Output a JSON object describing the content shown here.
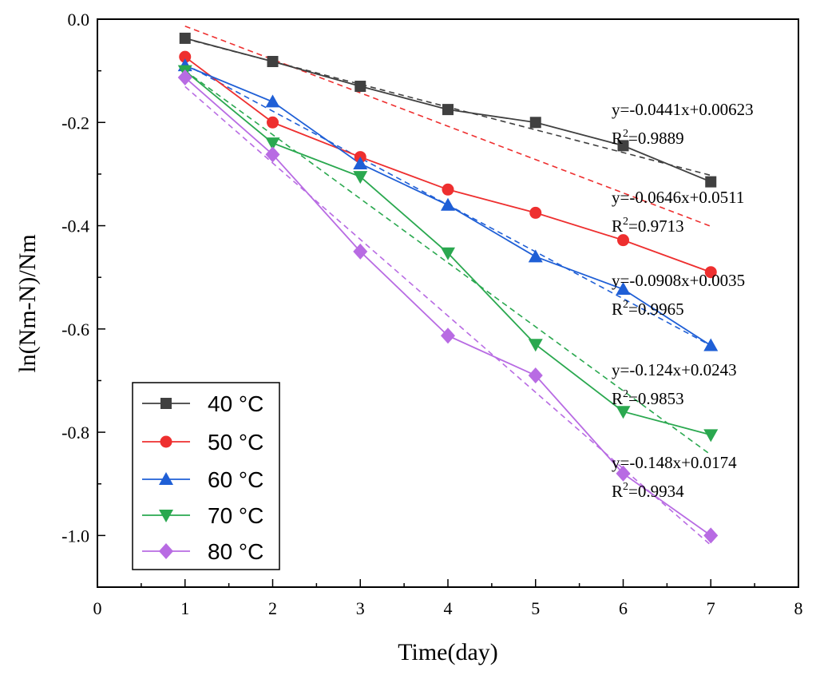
{
  "chart_data": {
    "type": "line",
    "xlabel": "Time(day)",
    "ylabel": "ln(Nm-N)/Nm",
    "xlim": [
      0,
      8
    ],
    "ylim": [
      -1.1,
      0.0
    ],
    "xticks": [
      0,
      1,
      2,
      3,
      4,
      5,
      6,
      7,
      8
    ],
    "xtick_labels": [
      "0",
      "1",
      "2",
      "3",
      "4",
      "5",
      "6",
      "7",
      "8"
    ],
    "yticks": [
      0.0,
      -0.2,
      -0.4,
      -0.6,
      -0.8,
      -1.0
    ],
    "ytick_labels": [
      "0.0",
      "-0.2",
      "-0.4",
      "-0.6",
      "-0.8",
      "-1.0"
    ],
    "grid": false,
    "legend_position": "bottom-left",
    "x": [
      1,
      2,
      3,
      4,
      5,
      6,
      7
    ],
    "series": [
      {
        "name": "40 °C",
        "color": "#404040",
        "marker": "square",
        "values": [
          -0.037,
          -0.082,
          -0.13,
          -0.175,
          -0.2,
          -0.245,
          -0.315
        ],
        "fit": {
          "slope": -0.0441,
          "intercept": 0.00623
        },
        "equation": "y=-0.0441x+0.00623",
        "r2_label": "R",
        "r2_value": "=0.9889"
      },
      {
        "name": "50 °C",
        "color": "#ee2f2f",
        "marker": "circle",
        "values": [
          -0.073,
          -0.2,
          -0.267,
          -0.33,
          -0.375,
          -0.428,
          -0.49
        ],
        "fit": {
          "slope": -0.0646,
          "intercept": 0.0511
        },
        "equation": "y=-0.0646x+0.0511",
        "r2_label": "R",
        "r2_value": "=0.9713"
      },
      {
        "name": "60 °C",
        "color": "#1f5fd6",
        "marker": "triangle-up",
        "values": [
          -0.09,
          -0.16,
          -0.28,
          -0.36,
          -0.46,
          -0.523,
          -0.632
        ],
        "fit": {
          "slope": -0.0908,
          "intercept": 0.0035
        },
        "equation": "y=-0.0908x+0.0035",
        "r2_label": "R",
        "r2_value": "=0.9965"
      },
      {
        "name": "70 °C",
        "color": "#2aa84f",
        "marker": "triangle-down",
        "values": [
          -0.1,
          -0.24,
          -0.305,
          -0.453,
          -0.63,
          -0.76,
          -0.805
        ],
        "fit": {
          "slope": -0.124,
          "intercept": 0.0243
        },
        "equation": "y=-0.124x+0.0243",
        "r2_label": "R",
        "r2_value": "=0.9853"
      },
      {
        "name": "80 °C",
        "color": "#b86be3",
        "marker": "diamond",
        "values": [
          -0.113,
          -0.262,
          -0.45,
          -0.613,
          -0.69,
          -0.88,
          -1.0
        ],
        "fit": {
          "slope": -0.148,
          "intercept": 0.0174
        },
        "equation": "y=-0.148x+0.0174",
        "r2_label": "R",
        "r2_value": "=0.9934"
      }
    ]
  }
}
